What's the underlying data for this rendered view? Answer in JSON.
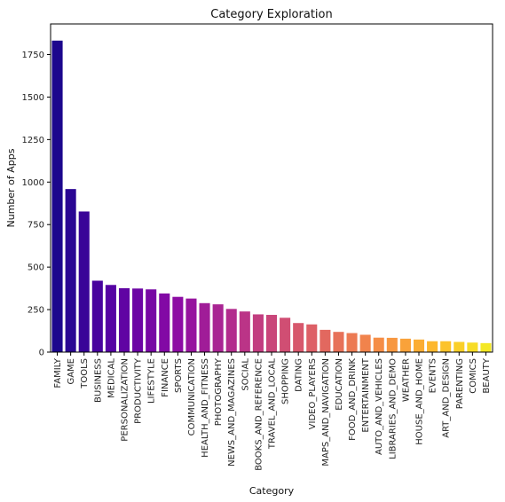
{
  "chart_data": {
    "type": "bar",
    "title": "Category Exploration",
    "xlabel": "Category",
    "ylabel": "Number of Apps",
    "ylim": [
      0,
      1930
    ],
    "yticks": [
      0,
      250,
      500,
      750,
      1000,
      1250,
      1500,
      1750
    ],
    "grid": false,
    "legend": "none",
    "palette": "plasma",
    "categories": [
      "FAMILY",
      "GAME",
      "TOOLS",
      "BUSINESS",
      "MEDICAL",
      "PERSONALIZATION",
      "PRODUCTIVITY",
      "LIFESTYLE",
      "FINANCE",
      "SPORTS",
      "COMMUNICATION",
      "HEALTH_AND_FITNESS",
      "PHOTOGRAPHY",
      "NEWS_AND_MAGAZINES",
      "SOCIAL",
      "BOOKS_AND_REFERENCE",
      "TRAVEL_AND_LOCAL",
      "SHOPPING",
      "DATING",
      "VIDEO_PLAYERS",
      "MAPS_AND_NAVIGATION",
      "EDUCATION",
      "FOOD_AND_DRINK",
      "ENTERTAINMENT",
      "AUTO_AND_VEHICLES",
      "LIBRARIES_AND_DEMO",
      "WEATHER",
      "HOUSE_AND_HOME",
      "EVENTS",
      "ART_AND_DESIGN",
      "PARENTING",
      "COMICS",
      "BEAUTY"
    ],
    "values": [
      1832,
      959,
      827,
      420,
      395,
      376,
      374,
      369,
      345,
      325,
      315,
      288,
      281,
      254,
      239,
      222,
      219,
      202,
      171,
      163,
      131,
      119,
      112,
      102,
      85,
      84,
      79,
      74,
      64,
      64,
      60,
      56,
      53
    ]
  }
}
